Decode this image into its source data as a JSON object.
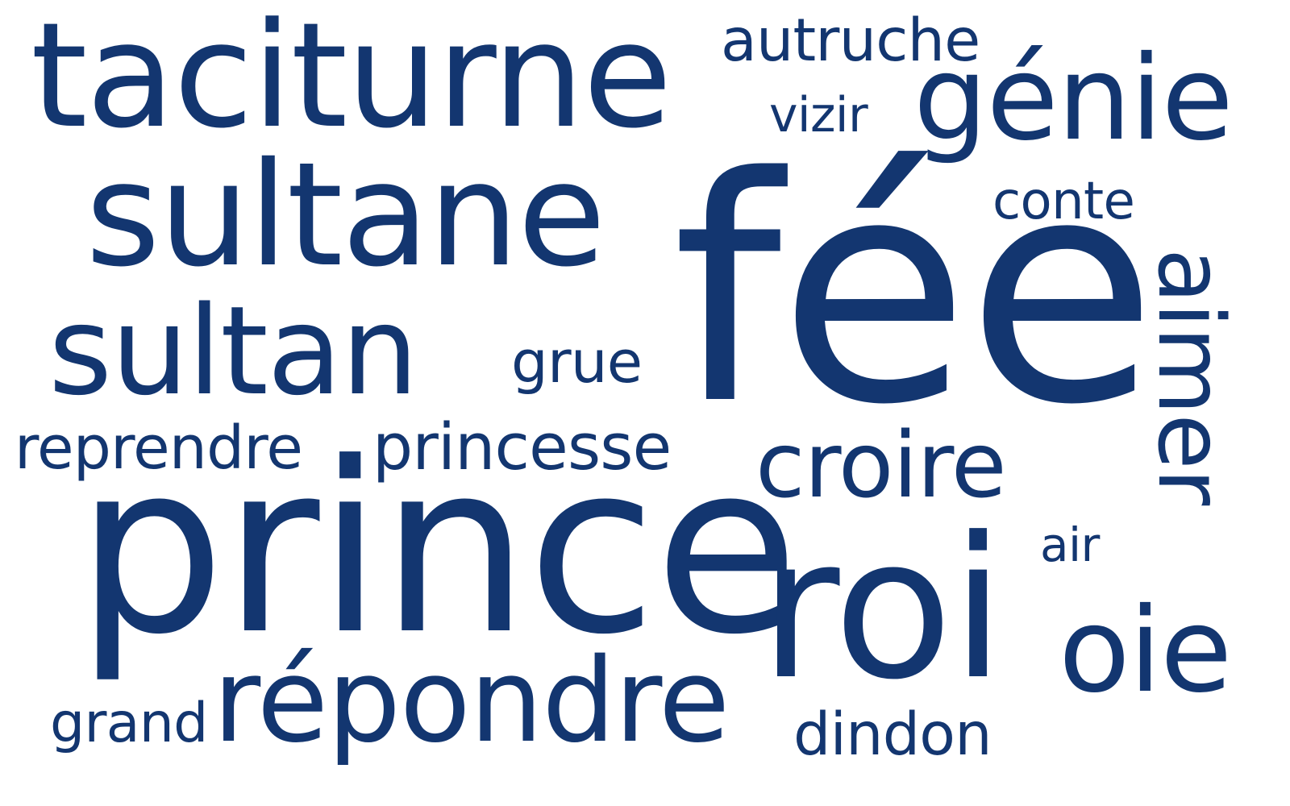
{
  "palette": {
    "word_color": "#133670",
    "background": "#ffffff"
  },
  "words": {
    "fee": "fée",
    "prince": "prince",
    "roi": "roi",
    "taciturne": "taciturne",
    "sultane": "sultane",
    "sultan": "sultan",
    "repondre": "répondre",
    "genie": "génie",
    "oie": "oie",
    "croire": "croire",
    "aimer": "aimer",
    "princesse": "princesse",
    "reprendre": "reprendre",
    "autruche": "autruche",
    "dindon": "dindon",
    "grue": "grue",
    "grand": "grand",
    "conte": "conte",
    "vizir": "vizir",
    "air": "air"
  }
}
